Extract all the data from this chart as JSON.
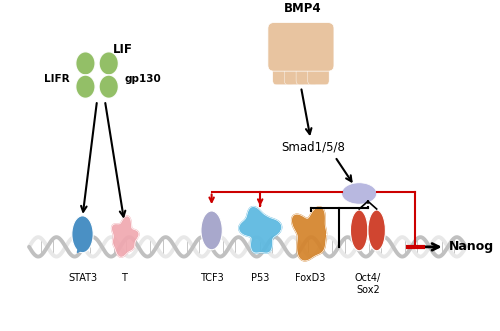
{
  "background_color": "#ffffff",
  "lif_color": "#8aba5a",
  "lif_label": "LIF",
  "lifr_label": "LIFR",
  "gp130_label": "gp130",
  "bmp4_color": "#e8c4a0",
  "bmp4_label": "BMP4",
  "smad_label": "Smad1/5/8",
  "smad_oval_color": "#b8b8e0",
  "stat3_color": "#4a90c4",
  "stat3_label": "STAT3",
  "t_color": "#f0a8b0",
  "t_label": "T",
  "tcf3_color": "#a8a8cc",
  "tcf3_label": "TCF3",
  "p53_color": "#5ab8e0",
  "p53_label": "P53",
  "foxd3_color": "#d4832a",
  "foxd3_label": "FoxD3",
  "oct4_color": "#d04530",
  "oct4_label": "Oct4/\nSox2",
  "nanog_label": "Nanog",
  "repression_color": "#cc0000",
  "dna_color": "#c0c0c0",
  "dna_color2": "#e8e8e8"
}
